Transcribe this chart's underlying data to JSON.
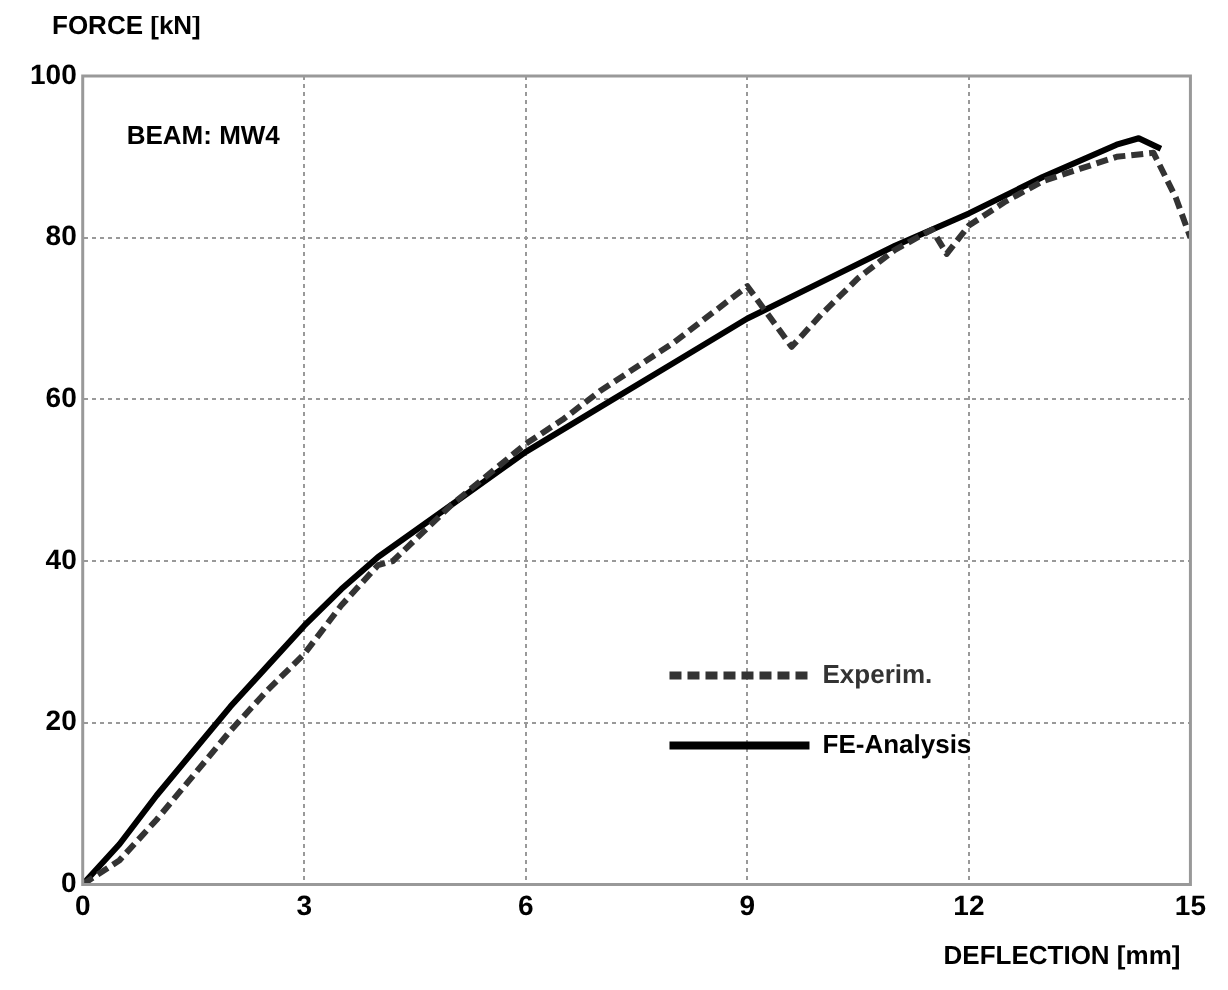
{
  "chart_data": {
    "type": "line",
    "xlabel": "DEFLECTION [mm]",
    "ylabel": "FORCE [kN]",
    "annotations": [
      "BEAM: MW4"
    ],
    "xlim": [
      0,
      15
    ],
    "xticks": [
      0,
      3,
      6,
      9,
      12,
      15
    ],
    "ylim": [
      0,
      100
    ],
    "yticks": [
      0,
      20,
      40,
      60,
      80,
      100
    ],
    "grid": true,
    "legend": "bottom right",
    "marker": "none",
    "series": [
      {
        "name": "Experim.",
        "color": "#333333",
        "line_style": "dashed",
        "x": [
          0,
          0.5,
          1,
          1.5,
          2,
          2.5,
          3,
          3.5,
          4,
          4.2,
          5,
          6,
          6.5,
          7,
          8,
          8.5,
          9,
          9.6,
          10,
          10.5,
          11,
          11.5,
          11.7,
          12,
          12.5,
          13,
          13.5,
          14,
          14.5,
          14.8,
          15
        ],
        "values": [
          0,
          3,
          8,
          13.5,
          19,
          24,
          28.5,
          34.5,
          39.5,
          40,
          47,
          54.5,
          57.5,
          61,
          67,
          70.5,
          74,
          66.5,
          70.5,
          75,
          78.5,
          81,
          78,
          81.5,
          84.5,
          87,
          88.5,
          90,
          90.5,
          85,
          80
        ]
      },
      {
        "name": "FE-Analysis",
        "color": "#000000",
        "line_style": "solid",
        "x": [
          0,
          0.5,
          1,
          1.5,
          2,
          2.5,
          3,
          3.5,
          4,
          5,
          6,
          7,
          8,
          9,
          10,
          11,
          12,
          13,
          14,
          14.3,
          14.6
        ],
        "values": [
          0,
          5,
          11,
          16.5,
          22,
          27,
          32,
          36.5,
          40.5,
          47,
          53.5,
          59,
          64.5,
          70,
          74.5,
          79,
          83,
          87.5,
          91.5,
          92.3,
          91
        ]
      }
    ]
  }
}
